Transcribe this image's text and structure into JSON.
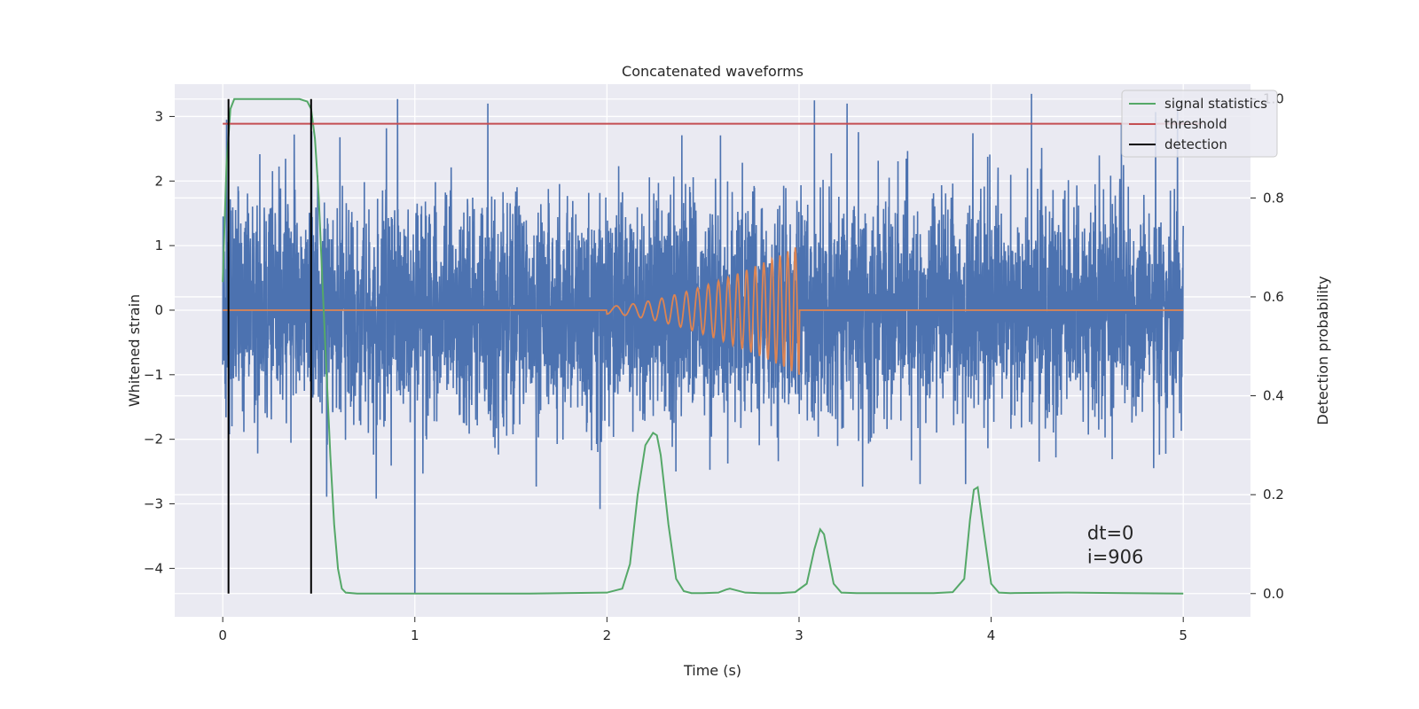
{
  "chart_data": {
    "type": "line",
    "title": "Concatenated waveforms",
    "xlabel": "Time (s)",
    "ylabel": "Whitened strain",
    "ylabel_right": "Detection probability",
    "xlim": [
      -0.25,
      5.35
    ],
    "ylim": [
      -4.75,
      3.5
    ],
    "ylim_right": [
      -0.047,
      1.03
    ],
    "xticks": [
      0,
      1,
      2,
      3,
      4,
      5
    ],
    "yticks": [
      -4,
      -3,
      -2,
      -1,
      0,
      1,
      2,
      3
    ],
    "yticks_right": [
      0.0,
      0.2,
      0.4,
      0.6,
      0.8,
      1.0
    ],
    "xtick_labels": [
      "0",
      "1",
      "2",
      "3",
      "4",
      "5"
    ],
    "ytick_labels": [
      "−4",
      "−3",
      "−2",
      "−1",
      "0",
      "1",
      "2",
      "3"
    ],
    "ytick_labels_right": [
      "0.0",
      "0.2",
      "0.4",
      "0.6",
      "0.8",
      "1.0"
    ],
    "grid": true,
    "legend_position": "top-right",
    "strain_noise": {
      "color": "#4c72b0",
      "x_range": [
        0,
        5
      ],
      "amplitude_std": 0.85,
      "notable_extremes": [
        {
          "x": 0.02,
          "y": 2.95
        },
        {
          "x": 0.91,
          "y": 3.27
        },
        {
          "x": 1.0,
          "y": -4.4
        },
        {
          "x": 1.38,
          "y": 3.2
        },
        {
          "x": 3.08,
          "y": 3.25
        },
        {
          "x": 3.25,
          "y": 3.2
        },
        {
          "x": 4.21,
          "y": 3.35
        },
        {
          "x": 4.97,
          "y": 3.15
        }
      ]
    },
    "injected_signal": {
      "color": "#dd8452",
      "start": 2.0,
      "end": 3.0,
      "final_amplitude": 1.0
    },
    "series": [
      {
        "name": "signal statistics",
        "color": "#55a868",
        "axis": "right",
        "x": [
          0.0,
          0.02,
          0.04,
          0.06,
          0.08,
          0.1,
          0.15,
          0.2,
          0.3,
          0.4,
          0.44,
          0.46,
          0.48,
          0.5,
          0.52,
          0.54,
          0.56,
          0.58,
          0.6,
          0.62,
          0.64,
          0.7,
          0.9,
          1.2,
          1.6,
          2.0,
          2.08,
          2.12,
          2.16,
          2.2,
          2.24,
          2.26,
          2.28,
          2.32,
          2.36,
          2.4,
          2.44,
          2.5,
          2.58,
          2.62,
          2.64,
          2.66,
          2.72,
          2.8,
          2.9,
          2.98,
          3.04,
          3.08,
          3.11,
          3.13,
          3.15,
          3.18,
          3.22,
          3.3,
          3.5,
          3.7,
          3.8,
          3.86,
          3.89,
          3.91,
          3.93,
          3.96,
          4.0,
          4.04,
          4.1,
          4.4,
          4.7,
          5.0
        ],
        "y": [
          0.63,
          0.87,
          0.98,
          1.0,
          1.0,
          1.0,
          1.0,
          1.0,
          1.0,
          1.0,
          0.995,
          0.98,
          0.92,
          0.8,
          0.62,
          0.45,
          0.28,
          0.14,
          0.05,
          0.01,
          0.002,
          0.0,
          0.0,
          0.0,
          0.0,
          0.002,
          0.01,
          0.06,
          0.2,
          0.3,
          0.325,
          0.32,
          0.28,
          0.14,
          0.03,
          0.005,
          0.001,
          0.001,
          0.002,
          0.008,
          0.01,
          0.008,
          0.002,
          0.001,
          0.001,
          0.003,
          0.02,
          0.09,
          0.13,
          0.12,
          0.08,
          0.02,
          0.002,
          0.001,
          0.001,
          0.001,
          0.003,
          0.03,
          0.15,
          0.21,
          0.215,
          0.13,
          0.02,
          0.002,
          0.001,
          0.002,
          0.001,
          0.0
        ]
      },
      {
        "name": "threshold",
        "color": "#c44e52",
        "axis": "right",
        "x": [
          0.0,
          5.1
        ],
        "y": [
          0.95,
          0.95
        ]
      },
      {
        "name": "detection",
        "color": "#000000",
        "axis": "right",
        "type": "vlines",
        "x": [
          0.03,
          0.46
        ],
        "y_range": [
          0.0,
          1.0
        ]
      }
    ],
    "annotations": [
      {
        "text": "dt=0",
        "x": 4.5,
        "y": -3.55
      },
      {
        "text": "i=906",
        "x": 4.5,
        "y": -3.92
      }
    ]
  }
}
